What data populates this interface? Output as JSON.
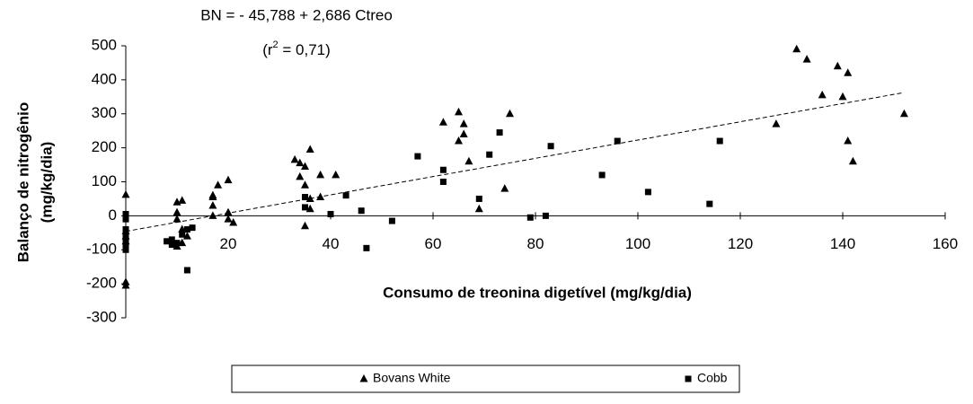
{
  "chart_data": {
    "type": "scatter",
    "annotations": [
      "BN = - 45,788 + 2,686 Ctreo"
    ],
    "r2_label": [
      "(r",
      "2",
      " = 0,71)"
    ],
    "x_label": "Consumo de treonina digetível (mg/kg/dia)",
    "y_label": [
      "Balanço de nitrogênio",
      "(mg/kg/dia)"
    ],
    "xlim": [
      0,
      160
    ],
    "xticks": [
      20,
      40,
      60,
      80,
      100,
      120,
      140,
      160
    ],
    "ylim": [
      -300,
      500
    ],
    "yticks": [
      -300,
      -200,
      -100,
      0,
      100,
      200,
      300,
      400,
      500
    ],
    "trendline": {
      "intercept": -45.788,
      "slope": 2.686,
      "x_range": [
        0,
        152
      ]
    },
    "legend": "bottom",
    "series": [
      {
        "name": "Bovans White",
        "marker": "triangle",
        "color": "#000000",
        "x": [
          0,
          0,
          0,
          0,
          0,
          0,
          10,
          10,
          10,
          11,
          11,
          12,
          11,
          10,
          17,
          17,
          18,
          17,
          17,
          20,
          20,
          20,
          21,
          33,
          34,
          35,
          36,
          34,
          35,
          36,
          38,
          38,
          41,
          35,
          36,
          62,
          65,
          66,
          65,
          66,
          67,
          69,
          74,
          75,
          127,
          131,
          133,
          136,
          139,
          140,
          141,
          141,
          142,
          152
        ],
        "values": [
          62,
          -195,
          -205,
          -45,
          -60,
          -75,
          40,
          10,
          -10,
          45,
          -40,
          -60,
          -80,
          -90,
          55,
          60,
          90,
          30,
          0,
          105,
          10,
          -10,
          -20,
          165,
          155,
          145,
          195,
          115,
          90,
          50,
          120,
          55,
          120,
          -30,
          20,
          275,
          305,
          270,
          220,
          240,
          160,
          20,
          80,
          300,
          270,
          490,
          460,
          355,
          440,
          350,
          420,
          220,
          160,
          300
        ]
      },
      {
        "name": "Cobb",
        "marker": "square",
        "color": "#000000",
        "x": [
          0,
          0,
          0,
          0,
          0,
          0,
          0,
          0,
          8,
          9,
          9,
          10,
          11,
          12,
          12,
          13,
          35,
          35,
          40,
          43,
          46,
          47,
          52,
          57,
          62,
          62,
          69,
          71,
          73,
          79,
          82,
          83,
          93,
          96,
          102,
          114,
          116
        ],
        "values": [
          5,
          -10,
          -40,
          -60,
          -70,
          -80,
          -90,
          -100,
          -75,
          -70,
          -85,
          -80,
          -55,
          -40,
          -160,
          -35,
          55,
          25,
          5,
          60,
          15,
          -95,
          -15,
          175,
          135,
          100,
          50,
          180,
          245,
          -5,
          0,
          205,
          120,
          220,
          70,
          35,
          220
        ]
      }
    ]
  }
}
